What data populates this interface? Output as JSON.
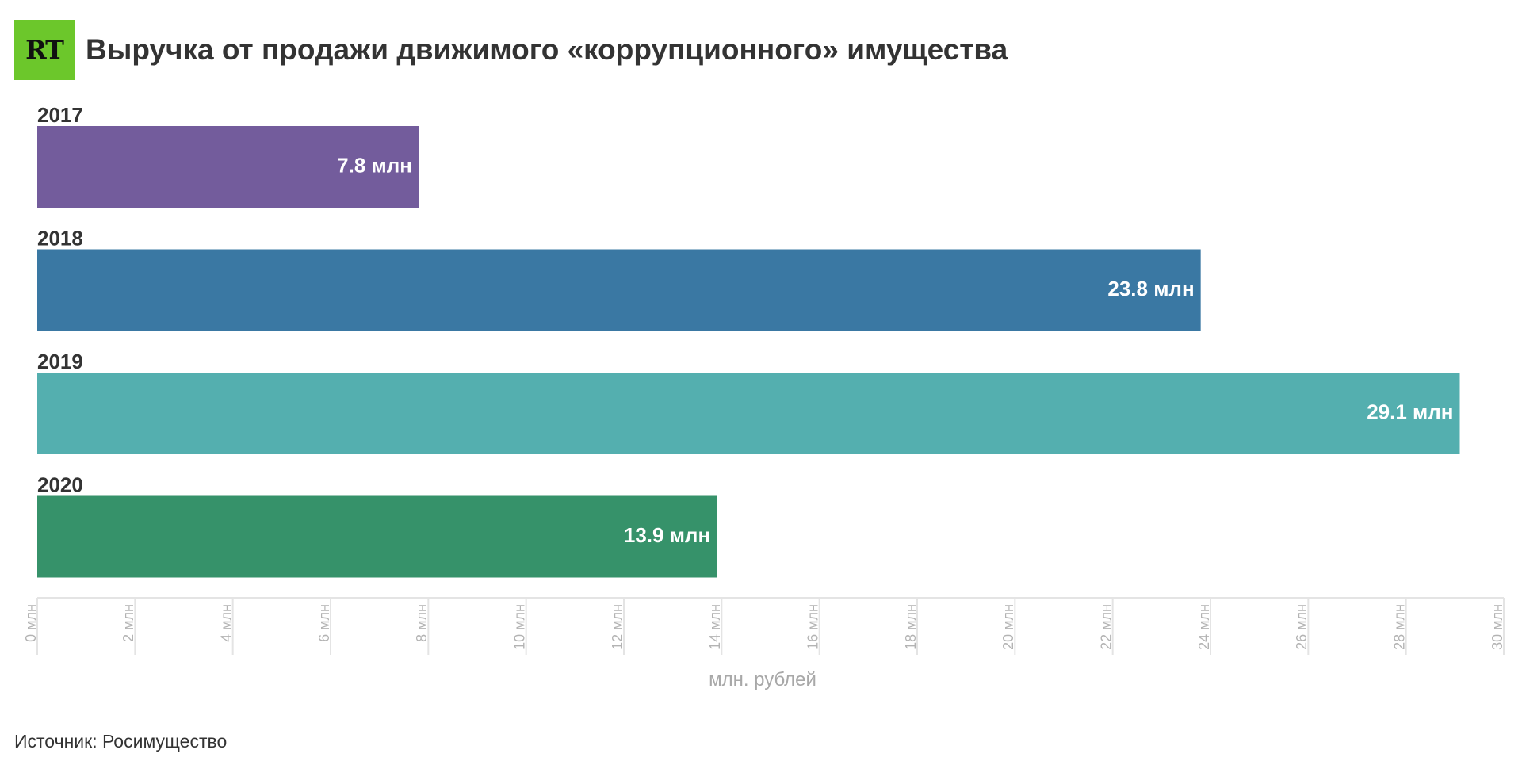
{
  "logo": {
    "text": "RT",
    "color": "#6cc72b"
  },
  "title": "Выручка от продажи движимого «коррупционного» имущества",
  "source": "Источник: Росимущество",
  "chart_data": {
    "type": "bar",
    "orientation": "horizontal",
    "categories": [
      "2017",
      "2018",
      "2019",
      "2020"
    ],
    "values": [
      7.8,
      23.8,
      29.1,
      13.9
    ],
    "value_labels": [
      "7.8 млн",
      "23.8 млн",
      "29.1 млн",
      "13.9 млн"
    ],
    "colors": [
      "#735c9c",
      "#3a78a3",
      "#54afaf",
      "#36926a"
    ],
    "xlim": [
      0,
      30
    ],
    "ticks": [
      0,
      2,
      4,
      6,
      8,
      10,
      12,
      14,
      16,
      18,
      20,
      22,
      24,
      26,
      28,
      30
    ],
    "tick_suffix": " млн",
    "xlabel": "млн. рублей",
    "grid": true,
    "legend": "none"
  }
}
